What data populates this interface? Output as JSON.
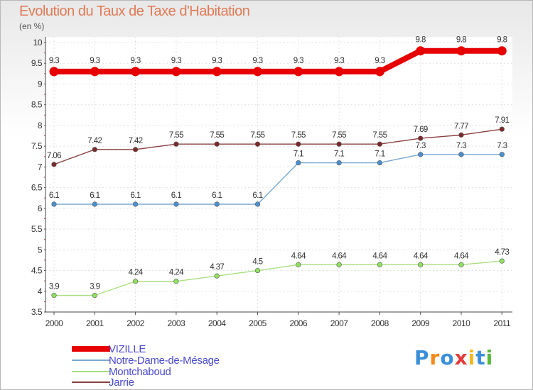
{
  "title": "Evolution du Taux de Taxe d'Habitation",
  "unit_label": "(en %)",
  "logo_text": "Proxiti",
  "chart_data": {
    "type": "line",
    "title": "Evolution du Taux de Taxe d'Habitation",
    "ylabel": "(en %)",
    "xlabel": "",
    "ylim": [
      3.5,
      10
    ],
    "yticks": [
      "3.5",
      "4",
      "4.5",
      "5",
      "5.5",
      "6",
      "6.5",
      "7",
      "7.5",
      "8",
      "8.5",
      "9",
      "9.5",
      "10"
    ],
    "categories": [
      "2000",
      "2001",
      "2002",
      "2003",
      "2004",
      "2005",
      "2006",
      "2007",
      "2008",
      "2009",
      "2010",
      "2011"
    ],
    "grid": true,
    "legend": "bottom-left",
    "series": [
      {
        "name": "VIZILLE",
        "color": "#e60000",
        "marker_color": "#e60000",
        "style": "thick",
        "values": [
          9.3,
          9.3,
          9.3,
          9.3,
          9.3,
          9.3,
          9.3,
          9.3,
          9.3,
          9.8,
          9.8,
          9.8
        ],
        "labels": [
          "9.3",
          "9.3",
          "9.3",
          "9.3",
          "9.3",
          "9.3",
          "9.3",
          "9.3",
          "9.3",
          "9.8",
          "9.8",
          "9.8"
        ]
      },
      {
        "name": "Notre-Dame-de-Mésage",
        "color": "#7aa8d0",
        "marker_color": "#4a90d0",
        "style": "thin",
        "values": [
          6.1,
          6.1,
          6.1,
          6.1,
          6.1,
          6.1,
          7.1,
          7.1,
          7.1,
          7.3,
          7.3,
          7.3
        ],
        "labels": [
          "6.1",
          "6.1",
          "6.1",
          "6.1",
          "6.1",
          "6.1",
          "7.1",
          "7.1",
          "7.1",
          "7.3",
          "7.3",
          "7.3"
        ]
      },
      {
        "name": "Montchaboud",
        "color": "#a8e080",
        "marker_color": "#90e060",
        "style": "thin",
        "values": [
          3.9,
          3.9,
          4.24,
          4.24,
          4.37,
          4.5,
          4.64,
          4.64,
          4.64,
          4.64,
          4.64,
          4.73
        ],
        "labels": [
          "3.9",
          "3.9",
          "4.24",
          "4.24",
          "4.37",
          "4.5",
          "4.64",
          "4.64",
          "4.64",
          "4.64",
          "4.64",
          "4.73"
        ]
      },
      {
        "name": "Jarrie",
        "color": "#8b4040",
        "marker_color": "#7a2a2a",
        "style": "thin",
        "values": [
          7.06,
          7.42,
          7.42,
          7.55,
          7.55,
          7.55,
          7.55,
          7.55,
          7.55,
          7.69,
          7.77,
          7.91
        ],
        "labels": [
          "7.06",
          "7.42",
          "7.42",
          "7.55",
          "7.55",
          "7.55",
          "7.55",
          "7.55",
          "7.55",
          "7.69",
          "7.77",
          "7.91"
        ]
      }
    ]
  }
}
